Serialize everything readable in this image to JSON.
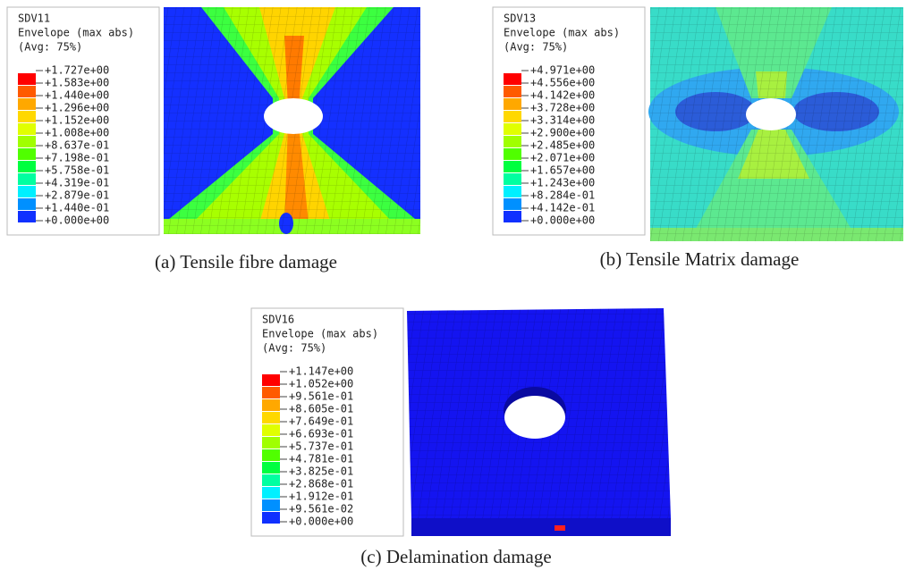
{
  "panels": [
    {
      "legend": {
        "title": [
          "SDV11",
          "Envelope (max abs)",
          "(Avg: 75%)"
        ],
        "values": [
          "+1.727e+00",
          "+1.583e+00",
          "+1.440e+00",
          "+1.296e+00",
          "+1.152e+00",
          "+1.008e+00",
          "+8.637e-01",
          "+7.198e-01",
          "+5.758e-01",
          "+4.319e-01",
          "+2.879e-01",
          "+1.440e-01",
          "+0.000e+00"
        ]
      },
      "caption": "(a) Tensile fibre damage"
    },
    {
      "legend": {
        "title": [
          "SDV13",
          "Envelope (max abs)",
          "(Avg: 75%)"
        ],
        "values": [
          "+4.971e+00",
          "+4.556e+00",
          "+4.142e+00",
          "+3.728e+00",
          "+3.314e+00",
          "+2.900e+00",
          "+2.485e+00",
          "+2.071e+00",
          "+1.657e+00",
          "+1.243e+00",
          "+8.284e-01",
          "+4.142e-01",
          "+0.000e+00"
        ]
      },
      "caption": "(b) Tensile Matrix damage"
    },
    {
      "legend": {
        "title": [
          "SDV16",
          "Envelope (max abs)",
          "(Avg: 75%)"
        ],
        "values": [
          "+1.147e+00",
          "+1.052e+00",
          "+9.561e-01",
          "+8.605e-01",
          "+7.649e-01",
          "+6.693e-01",
          "+5.737e-01",
          "+4.781e-01",
          "+3.825e-01",
          "+2.868e-01",
          "+1.912e-01",
          "+9.561e-02",
          "+0.000e+00"
        ]
      },
      "caption": "(c) Delamination damage"
    }
  ]
}
